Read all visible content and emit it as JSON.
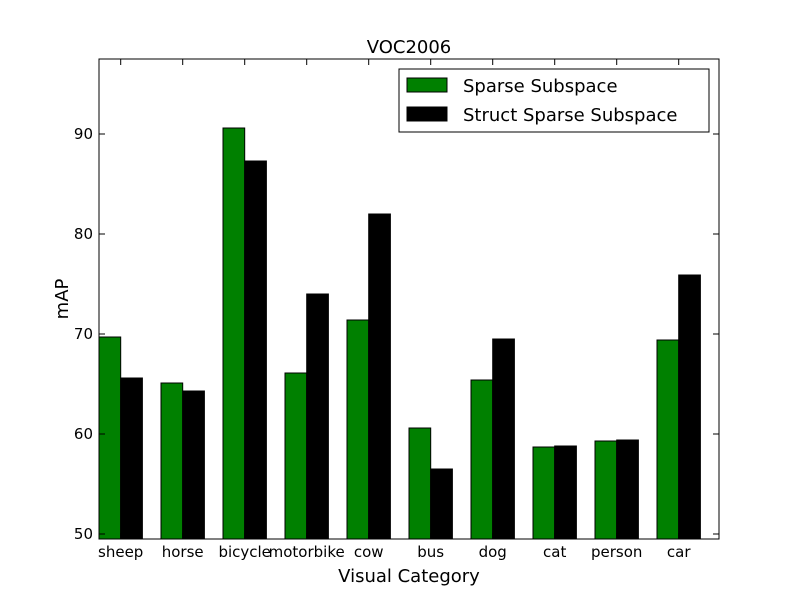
{
  "chart_data": {
    "type": "bar",
    "title": "VOC2006",
    "xlabel": "Visual Category",
    "ylabel": "mAP",
    "categories": [
      "sheep",
      "horse",
      "bicycle",
      "motorbike",
      "cow",
      "bus",
      "dog",
      "cat",
      "person",
      "car"
    ],
    "series": [
      {
        "name": "Sparse Subspace",
        "color": "#008000",
        "values": [
          69.7,
          65.1,
          90.6,
          66.1,
          71.4,
          60.6,
          65.4,
          58.7,
          59.3,
          69.4
        ]
      },
      {
        "name": "Struct Sparse Subspace",
        "color": "#000000",
        "values": [
          65.6,
          64.3,
          87.3,
          74.0,
          82.0,
          56.5,
          69.5,
          58.8,
          59.4,
          75.9
        ]
      }
    ],
    "ylim": [
      49.5,
      97.5
    ],
    "yticks": [
      50,
      60,
      70,
      80,
      90
    ],
    "grid": false,
    "legend": "top-right"
  }
}
